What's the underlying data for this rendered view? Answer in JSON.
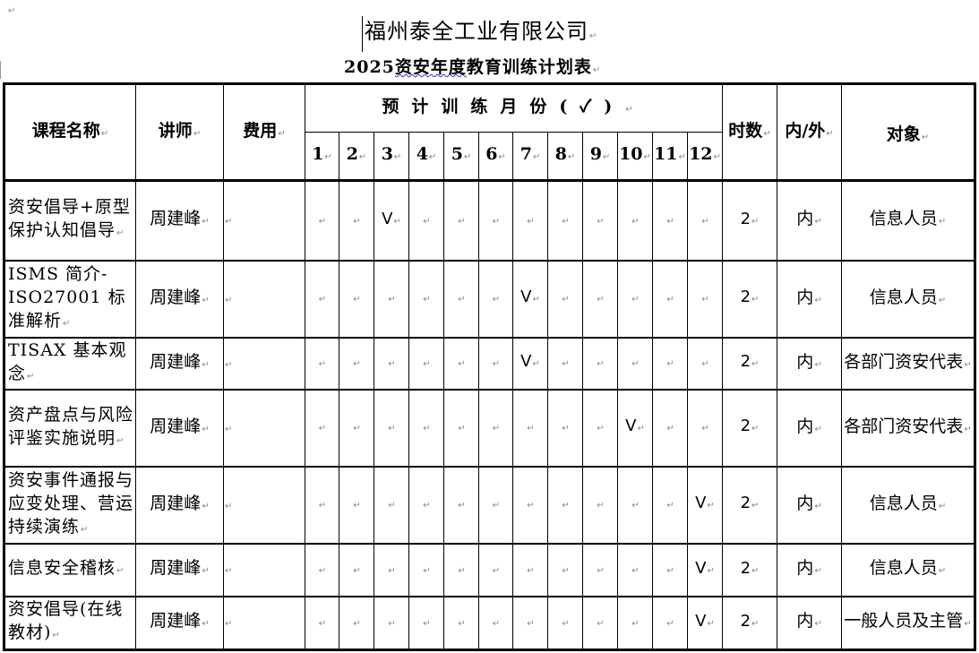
{
  "document": {
    "company_title": "福州泰全工业有限公司",
    "subtitle_year": "2025",
    "subtitle_underlined": "资安年度",
    "subtitle_rest": "教育训练计划表"
  },
  "table": {
    "headers": {
      "course": "课程名称",
      "lecturer": "讲师",
      "cost": "费用",
      "months_group": "预计训练月份(✓)",
      "hours": "时数",
      "in_out": "内/外",
      "audience": "对象"
    },
    "months": [
      "1",
      "2",
      "3",
      "4",
      "5",
      "6",
      "7",
      "8",
      "9",
      "10",
      "11",
      "12"
    ],
    "check_mark": "V",
    "rows": [
      {
        "course": "资安倡导+原型保护认知倡导",
        "lecturer": "周建峰",
        "cost": "",
        "months": [
          3
        ],
        "hours": "2",
        "in_out": "内",
        "audience": "信息人员",
        "height": 89
      },
      {
        "course": "ISMS 简介-ISO27001 标准解析",
        "lecturer": "周建峰",
        "cost": "",
        "months": [
          7
        ],
        "hours": "2",
        "in_out": "内",
        "audience": "信息人员",
        "height": 86
      },
      {
        "course": "TISAX 基本观念",
        "lecturer": "周建峰",
        "cost": "",
        "months": [
          7
        ],
        "hours": "2",
        "in_out": "内",
        "audience": "各部门资安代表",
        "height": 58
      },
      {
        "course": "资产盘点与风险评鉴实施说明",
        "lecturer": "周建峰",
        "cost": "",
        "months": [
          10
        ],
        "hours": "2",
        "in_out": "内",
        "audience": "各部门资安代表",
        "height": 86
      },
      {
        "course": "资安事件通报与应变处理、营运持续演练",
        "lecturer": "周建峰",
        "cost": "",
        "months": [
          12
        ],
        "hours": "2",
        "in_out": "内",
        "audience": "信息人员",
        "height": 86
      },
      {
        "course": "信息安全稽核",
        "lecturer": "周建峰",
        "cost": "",
        "months": [
          12
        ],
        "hours": "2",
        "in_out": "内",
        "audience": "信息人员",
        "height": 59
      },
      {
        "course": "资安倡导(在线教材)",
        "lecturer": "周建峰",
        "cost": "",
        "months": [
          12
        ],
        "hours": "2",
        "in_out": "内",
        "audience": "一般人员及主管",
        "height": 60
      }
    ]
  }
}
